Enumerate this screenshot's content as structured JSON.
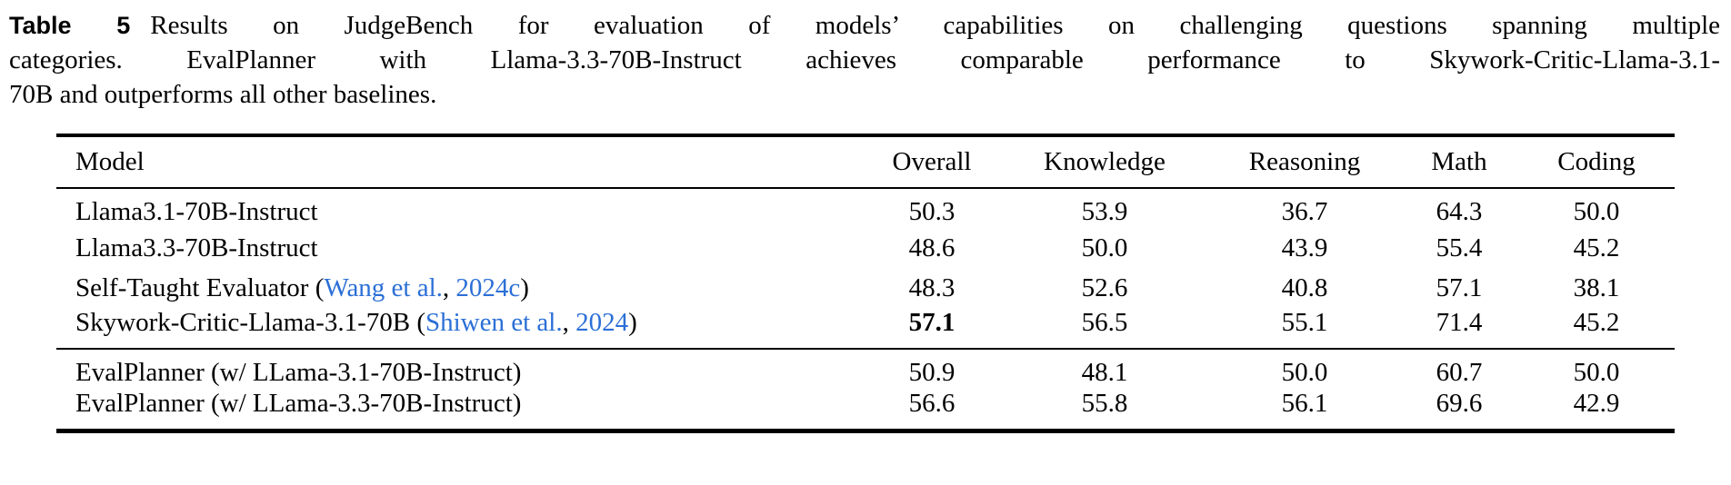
{
  "caption": {
    "label": "Table 5",
    "line1": "Results on JudgeBench for evaluation of models’ capabilities on challenging questions spanning multiple",
    "line2": "categories. EvalPlanner with Llama-3.3-70B-Instruct achieves comparable performance to Skywork-Critic-Llama-3.1-",
    "line3": "70B and outperforms all other baselines."
  },
  "colors": {
    "text": "#000000",
    "citation_blue": "#2b6fd6"
  },
  "table": {
    "columns": [
      "Model",
      "Overall",
      "Knowledge",
      "Reasoning",
      "Math",
      "Coding"
    ],
    "groups": [
      {
        "rows": [
          {
            "model": "Llama3.1-70B-Instruct",
            "citation": null,
            "scores": [
              "50.3",
              "53.9",
              "36.7",
              "64.3",
              "50.0"
            ],
            "bold_scores": []
          },
          {
            "model": "Llama3.3-70B-Instruct",
            "citation": null,
            "scores": [
              "48.6",
              "50.0",
              "43.9",
              "55.4",
              "45.2"
            ],
            "bold_scores": []
          },
          {
            "model": "Self-Taught Evaluator",
            "citation": {
              "authors": "Wang et al.",
              "year": "2024c"
            },
            "scores": [
              "48.3",
              "52.6",
              "40.8",
              "57.1",
              "38.1"
            ],
            "bold_scores": []
          },
          {
            "model": "Skywork-Critic-Llama-3.1-70B",
            "citation": {
              "authors": "Shiwen et al.",
              "year": "2024"
            },
            "scores": [
              "57.1",
              "56.5",
              "55.1",
              "71.4",
              "45.2"
            ],
            "bold_scores": [
              0
            ]
          }
        ]
      },
      {
        "rows": [
          {
            "model": "EvalPlanner (w/ LLama-3.1-70B-Instruct)",
            "citation": null,
            "scores": [
              "50.9",
              "48.1",
              "50.0",
              "60.7",
              "50.0"
            ],
            "bold_scores": []
          },
          {
            "model": "EvalPlanner (w/ LLama-3.3-70B-Instruct)",
            "citation": null,
            "scores": [
              "56.6",
              "55.8",
              "56.1",
              "69.6",
              "42.9"
            ],
            "bold_scores": []
          }
        ]
      }
    ]
  }
}
